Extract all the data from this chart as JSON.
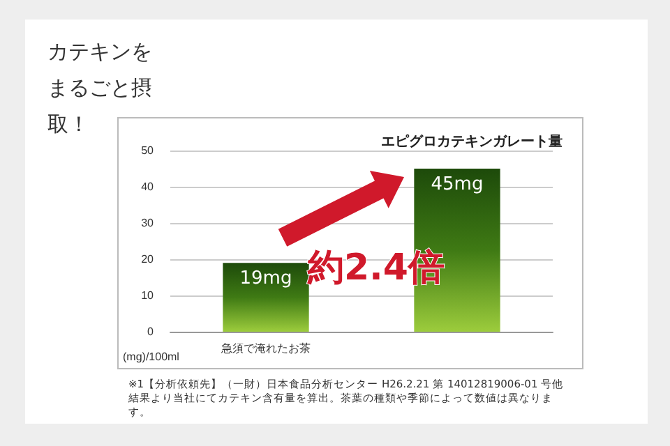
{
  "chart_data": {
    "type": "bar",
    "title": "カテキンをまるごと摂取！",
    "subtitle": "エピグロカテキンガレート量",
    "ylabel": "(mg)/100ml",
    "categories": [
      "急須で淹れたお茶",
      null
    ],
    "values": [
      19,
      45
    ],
    "value_labels": [
      "19mg",
      "45mg"
    ],
    "color": "#3f7a14",
    "ylim": [
      0,
      50
    ],
    "yticks": [
      0,
      10,
      20,
      30,
      40,
      50
    ],
    "grid": "y",
    "annotations": [
      "約2.4倍",
      "※1【分析依頼先】（一財）日本食品分析センター H26.2.21 第 14012819006-01 号他結果より当社にてカテキン含有量を算出。茶葉の種類や季節によって数値は異なります。"
    ]
  }
}
